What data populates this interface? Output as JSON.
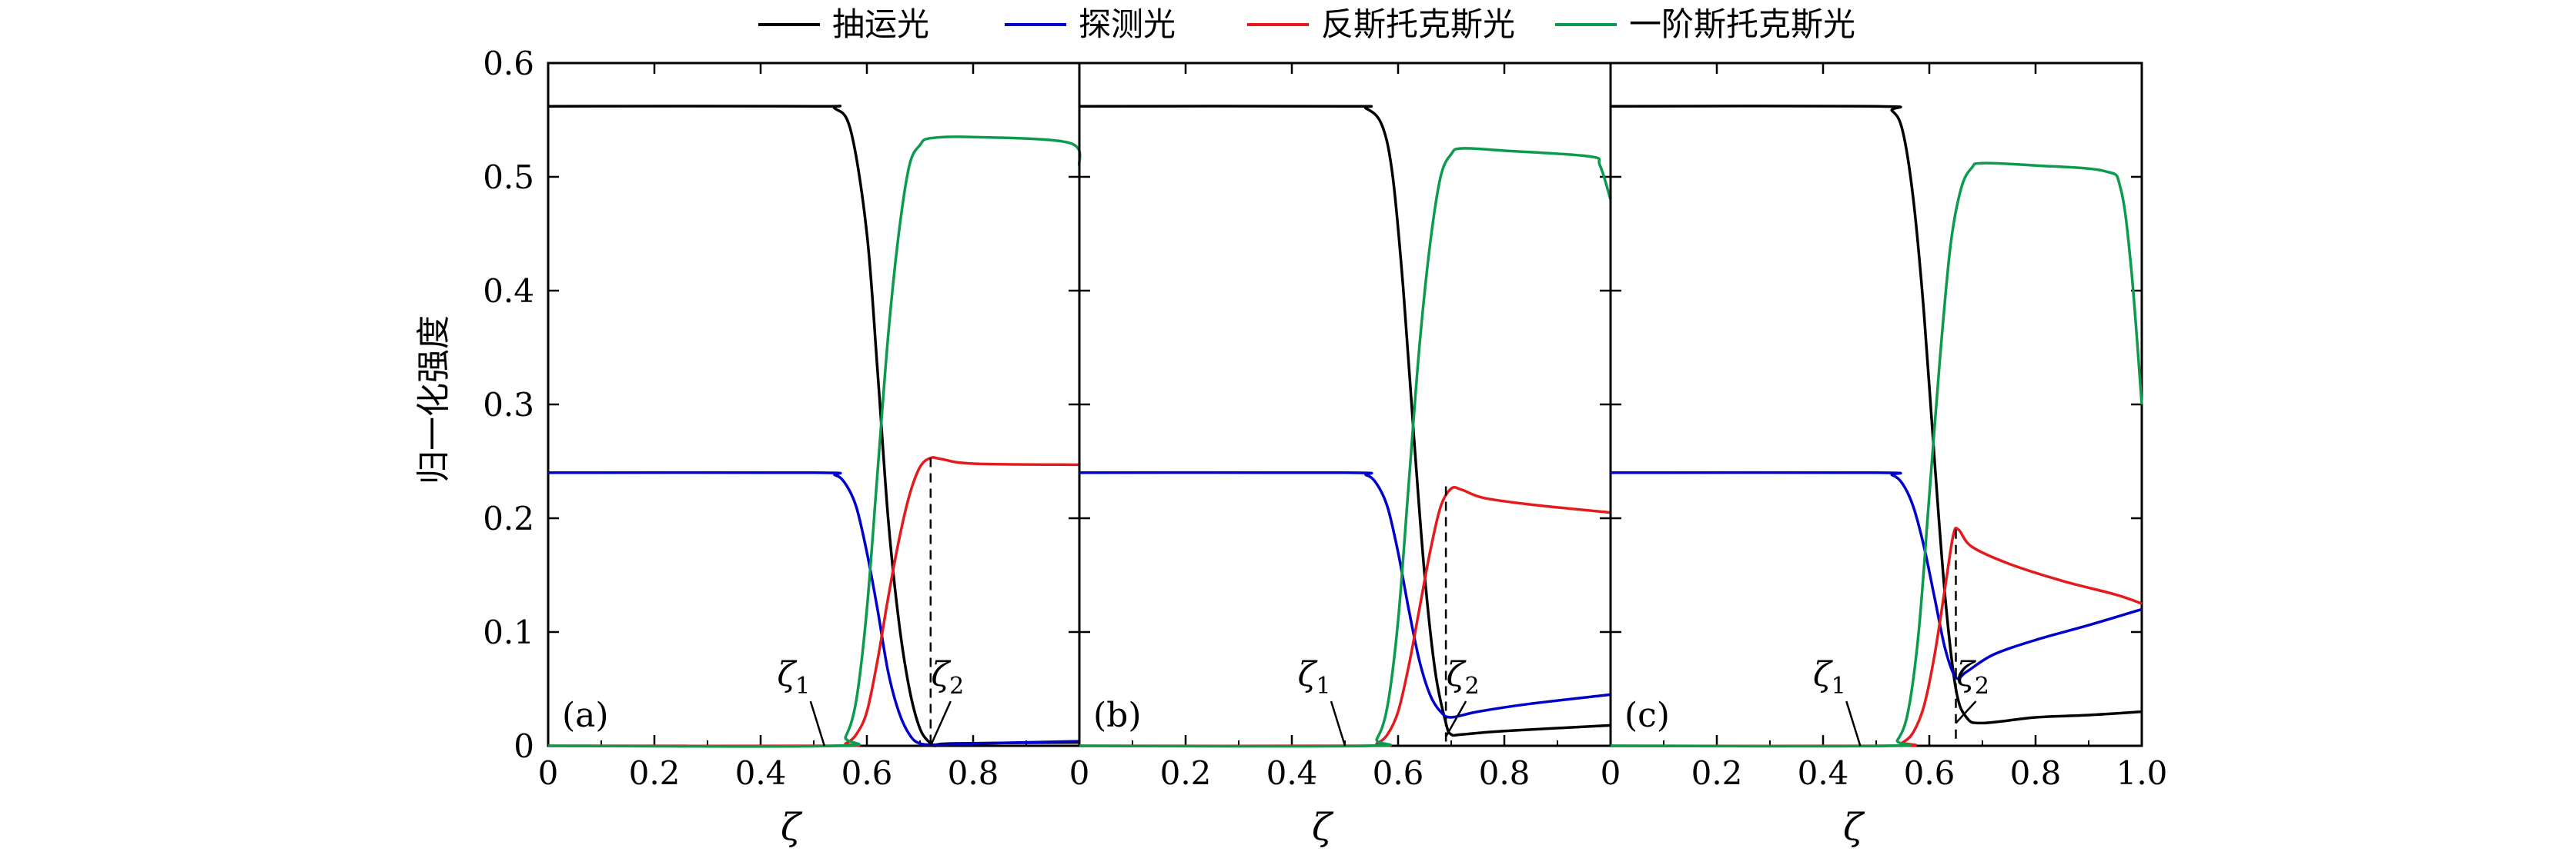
{
  "legend": {
    "placement": "top",
    "items": [
      {
        "label": "抽运光",
        "color": "#000000"
      },
      {
        "label": "探测光",
        "color": "#0000cc"
      },
      {
        "label": "反斯托克斯光",
        "color": "#e41a1c"
      },
      {
        "label": "一阶斯托克斯光",
        "color": "#0c9a4f"
      }
    ]
  },
  "chart_data": [
    {
      "type": "line",
      "panel_label": "(a)",
      "ylabel": "归一化强度",
      "xlabel": "ζ",
      "xlim": [
        0,
        1
      ],
      "ylim": [
        0,
        0.6
      ],
      "x_ticks": [
        "0",
        "0.2",
        "0.4",
        "0.6",
        "0.8"
      ],
      "y_ticks": [
        "0",
        "0.1",
        "0.2",
        "0.3",
        "0.4",
        "0.5",
        "0.6"
      ],
      "annotations": [
        {
          "label": "ζ",
          "sub": "1",
          "x": 0.52,
          "y": 0.0
        },
        {
          "label": "ζ",
          "sub": "2",
          "x": 0.72,
          "y": 0.0
        }
      ],
      "vline": {
        "x": 0.72,
        "y_top": 0.253
      },
      "series": [
        {
          "name": "抽运光",
          "color": "#000000",
          "points": [
            [
              0,
              0.562
            ],
            [
              0.5,
              0.562
            ],
            [
              0.54,
              0.56
            ],
            [
              0.57,
              0.54
            ],
            [
              0.6,
              0.45
            ],
            [
              0.62,
              0.33
            ],
            [
              0.64,
              0.2
            ],
            [
              0.66,
              0.11
            ],
            [
              0.68,
              0.05
            ],
            [
              0.7,
              0.015
            ],
            [
              0.72,
              0.002
            ],
            [
              0.73,
              0.0
            ],
            [
              0.76,
              0.002
            ],
            [
              1.0,
              0.003
            ]
          ]
        },
        {
          "name": "探测光",
          "color": "#0000cc",
          "points": [
            [
              0,
              0.24
            ],
            [
              0.5,
              0.24
            ],
            [
              0.54,
              0.238
            ],
            [
              0.56,
              0.23
            ],
            [
              0.58,
              0.21
            ],
            [
              0.6,
              0.17
            ],
            [
              0.62,
              0.12
            ],
            [
              0.64,
              0.065
            ],
            [
              0.66,
              0.03
            ],
            [
              0.68,
              0.01
            ],
            [
              0.7,
              0.002
            ],
            [
              0.74,
              0.001
            ],
            [
              0.8,
              0.002
            ],
            [
              1.0,
              0.004
            ]
          ]
        },
        {
          "name": "反斯托克斯光",
          "color": "#e41a1c",
          "points": [
            [
              0,
              0.0
            ],
            [
              0.54,
              0.0
            ],
            [
              0.56,
              0.002
            ],
            [
              0.58,
              0.01
            ],
            [
              0.6,
              0.03
            ],
            [
              0.62,
              0.075
            ],
            [
              0.64,
              0.13
            ],
            [
              0.66,
              0.18
            ],
            [
              0.68,
              0.22
            ],
            [
              0.7,
              0.245
            ],
            [
              0.72,
              0.253
            ],
            [
              0.74,
              0.252
            ],
            [
              0.8,
              0.248
            ],
            [
              1.0,
              0.247
            ]
          ]
        },
        {
          "name": "一阶斯托克斯光",
          "color": "#0c9a4f",
          "points": [
            [
              0,
              0.0
            ],
            [
              0.54,
              0.0
            ],
            [
              0.56,
              0.008
            ],
            [
              0.58,
              0.04
            ],
            [
              0.6,
              0.12
            ],
            [
              0.62,
              0.24
            ],
            [
              0.64,
              0.36
            ],
            [
              0.66,
              0.45
            ],
            [
              0.68,
              0.51
            ],
            [
              0.7,
              0.528
            ],
            [
              0.72,
              0.534
            ],
            [
              0.8,
              0.535
            ],
            [
              0.98,
              0.53
            ],
            [
              1.0,
              0.51
            ]
          ]
        }
      ]
    },
    {
      "type": "line",
      "panel_label": "(b)",
      "xlabel": "ζ",
      "xlim": [
        0,
        1
      ],
      "ylim": [
        0,
        0.6
      ],
      "x_ticks": [
        "0",
        "0.2",
        "0.4",
        "0.6",
        "0.8"
      ],
      "annotations": [
        {
          "label": "ζ",
          "sub": "1",
          "x": 0.5,
          "y": 0.0
        },
        {
          "label": "ζ",
          "sub": "2",
          "x": 0.69,
          "y": 0.008
        }
      ],
      "vline": {
        "x": 0.69,
        "y_top": 0.228
      },
      "series": [
        {
          "name": "抽运光",
          "color": "#000000",
          "points": [
            [
              0,
              0.562
            ],
            [
              0.5,
              0.562
            ],
            [
              0.54,
              0.56
            ],
            [
              0.57,
              0.545
            ],
            [
              0.59,
              0.5
            ],
            [
              0.61,
              0.4
            ],
            [
              0.63,
              0.27
            ],
            [
              0.65,
              0.15
            ],
            [
              0.67,
              0.065
            ],
            [
              0.69,
              0.02
            ],
            [
              0.7,
              0.01
            ],
            [
              0.72,
              0.01
            ],
            [
              0.8,
              0.013
            ],
            [
              1.0,
              0.018
            ]
          ]
        },
        {
          "name": "探测光",
          "color": "#0000cc",
          "points": [
            [
              0,
              0.24
            ],
            [
              0.5,
              0.24
            ],
            [
              0.54,
              0.238
            ],
            [
              0.56,
              0.23
            ],
            [
              0.58,
              0.21
            ],
            [
              0.6,
              0.17
            ],
            [
              0.62,
              0.12
            ],
            [
              0.64,
              0.075
            ],
            [
              0.66,
              0.045
            ],
            [
              0.68,
              0.03
            ],
            [
              0.7,
              0.025
            ],
            [
              0.75,
              0.03
            ],
            [
              0.85,
              0.037
            ],
            [
              1.0,
              0.045
            ]
          ]
        },
        {
          "name": "反斯托克斯光",
          "color": "#e41a1c",
          "points": [
            [
              0,
              0.0
            ],
            [
              0.54,
              0.0
            ],
            [
              0.56,
              0.002
            ],
            [
              0.58,
              0.01
            ],
            [
              0.6,
              0.03
            ],
            [
              0.62,
              0.07
            ],
            [
              0.64,
              0.12
            ],
            [
              0.66,
              0.17
            ],
            [
              0.68,
              0.21
            ],
            [
              0.7,
              0.226
            ],
            [
              0.72,
              0.225
            ],
            [
              0.76,
              0.218
            ],
            [
              0.85,
              0.212
            ],
            [
              1.0,
              0.205
            ]
          ]
        },
        {
          "name": "一阶斯托克斯光",
          "color": "#0c9a4f",
          "points": [
            [
              0,
              0.0
            ],
            [
              0.54,
              0.0
            ],
            [
              0.56,
              0.006
            ],
            [
              0.58,
              0.035
            ],
            [
              0.6,
              0.11
            ],
            [
              0.62,
              0.23
            ],
            [
              0.64,
              0.35
            ],
            [
              0.66,
              0.44
            ],
            [
              0.68,
              0.5
            ],
            [
              0.7,
              0.52
            ],
            [
              0.72,
              0.525
            ],
            [
              0.8,
              0.523
            ],
            [
              0.96,
              0.518
            ],
            [
              0.98,
              0.51
            ],
            [
              1.0,
              0.48
            ]
          ]
        }
      ]
    },
    {
      "type": "line",
      "panel_label": "(c)",
      "xlabel": "ζ",
      "xlim": [
        0,
        1
      ],
      "ylim": [
        0,
        0.6
      ],
      "x_ticks": [
        "0",
        "0.2",
        "0.4",
        "0.6",
        "0.8",
        "1.0"
      ],
      "annotations": [
        {
          "label": "ζ",
          "sub": "1",
          "x": 0.47,
          "y": 0.0
        },
        {
          "label": "ζ",
          "sub": "2",
          "x": 0.65,
          "y": 0.02
        }
      ],
      "vline": {
        "x": 0.65,
        "y_top": 0.19
      },
      "series": [
        {
          "name": "抽运光",
          "color": "#000000",
          "points": [
            [
              0,
              0.562
            ],
            [
              0.5,
              0.562
            ],
            [
              0.53,
              0.558
            ],
            [
              0.55,
              0.54
            ],
            [
              0.57,
              0.48
            ],
            [
              0.59,
              0.38
            ],
            [
              0.61,
              0.25
            ],
            [
              0.63,
              0.13
            ],
            [
              0.65,
              0.05
            ],
            [
              0.67,
              0.025
            ],
            [
              0.7,
              0.02
            ],
            [
              0.8,
              0.025
            ],
            [
              0.9,
              0.027
            ],
            [
              1.0,
              0.03
            ]
          ]
        },
        {
          "name": "探测光",
          "color": "#0000cc",
          "points": [
            [
              0,
              0.24
            ],
            [
              0.5,
              0.24
            ],
            [
              0.53,
              0.238
            ],
            [
              0.55,
              0.23
            ],
            [
              0.57,
              0.21
            ],
            [
              0.59,
              0.175
            ],
            [
              0.61,
              0.13
            ],
            [
              0.63,
              0.085
            ],
            [
              0.65,
              0.06
            ],
            [
              0.67,
              0.065
            ],
            [
              0.72,
              0.08
            ],
            [
              0.8,
              0.093
            ],
            [
              0.9,
              0.106
            ],
            [
              1.0,
              0.12
            ]
          ]
        },
        {
          "name": "反斯托克斯光",
          "color": "#e41a1c",
          "points": [
            [
              0,
              0.0
            ],
            [
              0.53,
              0.0
            ],
            [
              0.55,
              0.003
            ],
            [
              0.57,
              0.012
            ],
            [
              0.59,
              0.035
            ],
            [
              0.61,
              0.08
            ],
            [
              0.63,
              0.14
            ],
            [
              0.645,
              0.185
            ],
            [
              0.655,
              0.19
            ],
            [
              0.68,
              0.175
            ],
            [
              0.75,
              0.16
            ],
            [
              0.85,
              0.145
            ],
            [
              0.95,
              0.133
            ],
            [
              1.0,
              0.125
            ]
          ]
        },
        {
          "name": "一阶斯托克斯光",
          "color": "#0c9a4f",
          "points": [
            [
              0,
              0.0
            ],
            [
              0.52,
              0.0
            ],
            [
              0.54,
              0.005
            ],
            [
              0.56,
              0.03
            ],
            [
              0.58,
              0.1
            ],
            [
              0.6,
              0.22
            ],
            [
              0.62,
              0.34
            ],
            [
              0.64,
              0.44
            ],
            [
              0.66,
              0.49
            ],
            [
              0.68,
              0.508
            ],
            [
              0.7,
              0.512
            ],
            [
              0.8,
              0.51
            ],
            [
              0.93,
              0.505
            ],
            [
              0.96,
              0.49
            ],
            [
              0.98,
              0.42
            ],
            [
              1.0,
              0.3
            ]
          ]
        }
      ]
    }
  ]
}
